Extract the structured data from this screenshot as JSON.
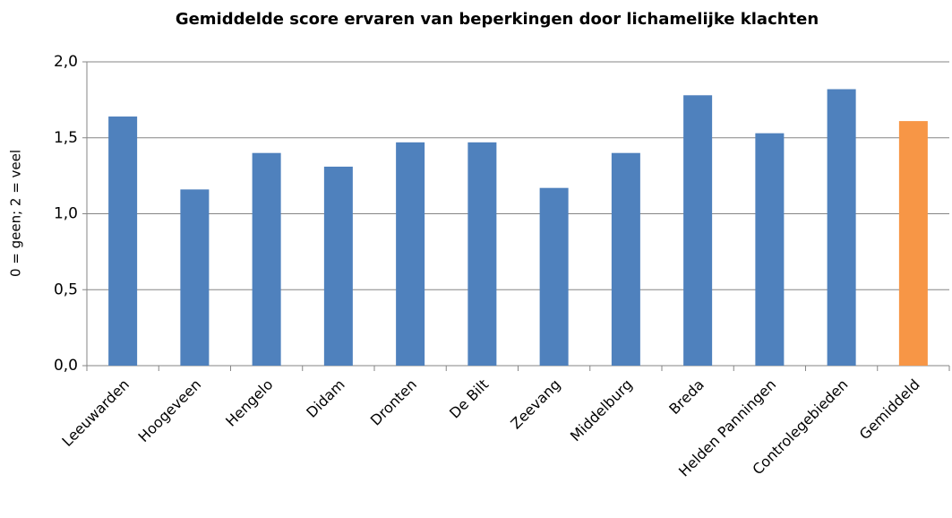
{
  "chart_data": {
    "type": "bar",
    "title": "Gemiddelde score ervaren van beperkingen door lichamelijke klachten",
    "y_label": "0 = geen; 2 = veel",
    "categories": [
      "Leeuwarden",
      "Hoogeveen",
      "Hengelo",
      "Didam",
      "Dronten",
      "De Bilt",
      "Zeevang",
      "Middelburg",
      "Breda",
      "Helden Panningen",
      "Controlegebieden",
      "Gemiddeld"
    ],
    "values": [
      1.64,
      1.16,
      1.4,
      1.31,
      1.47,
      1.47,
      1.17,
      1.4,
      1.78,
      1.53,
      1.82,
      1.61
    ],
    "colors": [
      "#4f81bd",
      "#4f81bd",
      "#4f81bd",
      "#4f81bd",
      "#4f81bd",
      "#4f81bd",
      "#4f81bd",
      "#4f81bd",
      "#4f81bd",
      "#4f81bd",
      "#4f81bd",
      "#f79646"
    ],
    "ylim": [
      0,
      2
    ],
    "yticks": [
      {
        "value": 0,
        "label": "0,0"
      },
      {
        "value": 0.5,
        "label": "0,5"
      },
      {
        "value": 1,
        "label": "1,0"
      },
      {
        "value": 1.5,
        "label": "1,5"
      },
      {
        "value": 2,
        "label": "2,0"
      }
    ],
    "grid": true
  }
}
